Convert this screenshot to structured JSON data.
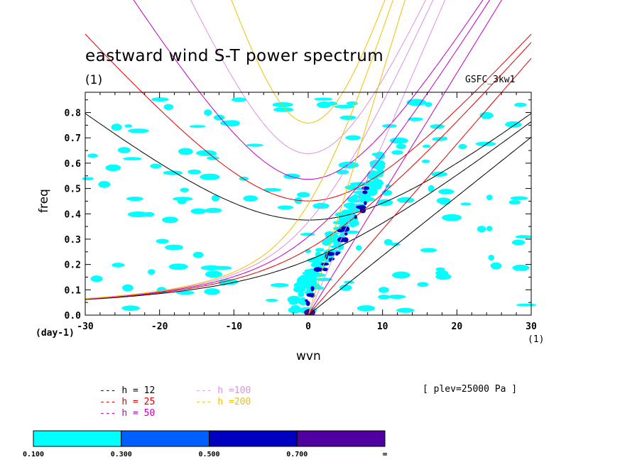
{
  "chart_data": {
    "type": "line",
    "title": "eastward wind S-T power spectrum",
    "subtitle": "(1)",
    "source_label": "GSFC_3kw1",
    "xlabel": "wvn",
    "x_unit": "(1)",
    "ylabel": "freq",
    "y_unit": "(day-1)",
    "annotation": "[ plev=25000 Pa ]",
    "xlim": [
      -30,
      30
    ],
    "ylim": [
      0,
      0.88
    ],
    "xticks": [
      -30,
      -20,
      -10,
      0,
      10,
      20,
      30
    ],
    "yticks": [
      0.0,
      0.1,
      0.2,
      0.3,
      0.4,
      0.5,
      0.6,
      0.7,
      0.8
    ],
    "ytick_labels": [
      "0.0",
      "0.1",
      "0.2",
      "0.3",
      "0.4",
      "0.5",
      "0.6",
      "0.7",
      "0.8"
    ],
    "series": [
      {
        "name": "h = 12",
        "equivalent_depth_m": 12,
        "color": "#000000"
      },
      {
        "name": "h = 25",
        "equivalent_depth_m": 25,
        "color": "#e00000"
      },
      {
        "name": "h = 50",
        "equivalent_depth_m": 50,
        "color": "#c000c0"
      },
      {
        "name": "h =100",
        "equivalent_depth_m": 100,
        "color": "#e090e0"
      },
      {
        "name": "h =200",
        "equivalent_depth_m": 200,
        "color": "#f0c000"
      }
    ],
    "shading": {
      "levels": [
        "0.100",
        "0.300",
        "0.500",
        "0.700",
        "∞"
      ],
      "colors": [
        "#00ffff",
        "#0060ff",
        "#0000c0",
        "#5000a0"
      ]
    }
  }
}
